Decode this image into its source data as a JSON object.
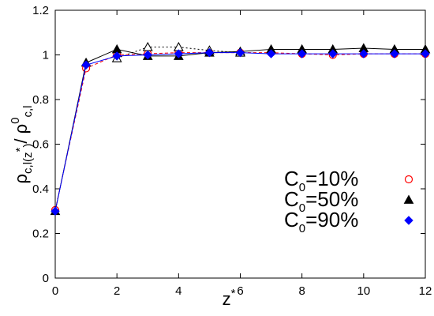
{
  "chart_data": {
    "type": "line",
    "xlim": [
      0,
      12
    ],
    "ylim": [
      0,
      1.2
    ],
    "xticks": [
      "0",
      "2",
      "4",
      "6",
      "8",
      "10",
      "12"
    ],
    "yticks": [
      "0",
      "0.2",
      "0.4",
      "0.6",
      "0.8",
      "1",
      "1.2"
    ],
    "xlabel": {
      "base": "z",
      "sup": "*"
    },
    "ylabel": {
      "rho": "ρ",
      "sub1": "c,l",
      "paren": "(z",
      "star": "*",
      "paren2": ")",
      "slash": "/ ρ",
      "sup0": "0",
      "sub2": "c,l"
    },
    "grid": false,
    "legend_position": "right",
    "series": [
      {
        "legend": {
          "base": "C",
          "sub": "0",
          "rest": "=10%"
        },
        "color": "#ff0000",
        "marker": "circle-open",
        "dash": "dashed",
        "x": [
          0,
          1,
          2,
          3,
          4,
          5,
          6,
          7,
          8,
          9,
          10,
          11,
          12
        ],
        "y": [
          0.305,
          0.94,
          1.0,
          1.005,
          1.01,
          1.01,
          1.01,
          1.01,
          1.005,
          1.0,
          1.005,
          1.005,
          1.005
        ]
      },
      {
        "legend": {
          "base": "C",
          "sub": "0",
          "rest": "=50%"
        },
        "color": "#000000",
        "marker": "triangle-mixed",
        "dash": "solid",
        "x": [
          0,
          1,
          2,
          3,
          4,
          5,
          6,
          7,
          8,
          9,
          10,
          11,
          12
        ],
        "y": [
          0.3,
          0.965,
          1.025,
          0.995,
          0.995,
          1.01,
          1.015,
          1.025,
          1.025,
          1.025,
          1.03,
          1.025,
          1.025
        ],
        "open_markers": [
          {
            "x": 2,
            "y": 0.985
          },
          {
            "x": 3,
            "y": 1.035
          },
          {
            "x": 4,
            "y": 1.035
          },
          {
            "x": 5,
            "y": 1.02
          },
          {
            "x": 6,
            "y": 1.01
          }
        ]
      },
      {
        "legend": {
          "base": "C",
          "sub": "0",
          "rest": "=90%"
        },
        "color": "#0000ff",
        "marker": "diamond-filled",
        "dash": "solid",
        "x": [
          0,
          1,
          2,
          3,
          4,
          5,
          6,
          7,
          8,
          9,
          10,
          11,
          12
        ],
        "y": [
          0.3,
          0.955,
          0.995,
          1.0,
          1.005,
          1.01,
          1.01,
          1.005,
          1.005,
          1.005,
          1.005,
          1.005,
          1.005
        ]
      }
    ]
  }
}
